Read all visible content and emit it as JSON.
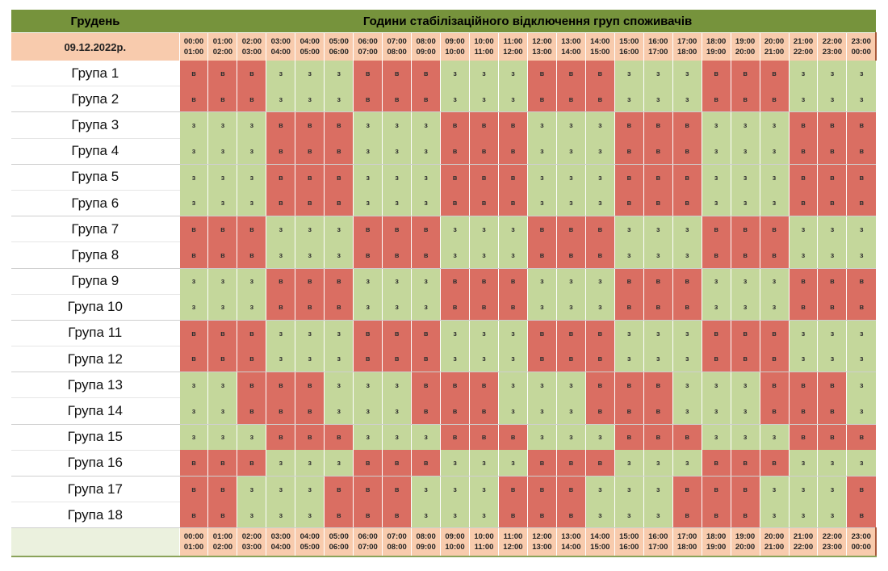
{
  "title": {
    "month": "Грудень",
    "heading": "Години стабілізаційного відключення груп споживачів"
  },
  "date": "09.12.2022р.",
  "hours": [
    {
      "start": "00:00",
      "end": "01:00"
    },
    {
      "start": "01:00",
      "end": "02:00"
    },
    {
      "start": "02:00",
      "end": "03:00"
    },
    {
      "start": "03:00",
      "end": "04:00"
    },
    {
      "start": "04:00",
      "end": "05:00"
    },
    {
      "start": "05:00",
      "end": "06:00"
    },
    {
      "start": "06:00",
      "end": "07:00"
    },
    {
      "start": "07:00",
      "end": "08:00"
    },
    {
      "start": "08:00",
      "end": "09:00"
    },
    {
      "start": "09:00",
      "end": "10:00"
    },
    {
      "start": "10:00",
      "end": "11:00"
    },
    {
      "start": "11:00",
      "end": "12:00"
    },
    {
      "start": "12:00",
      "end": "13:00"
    },
    {
      "start": "13:00",
      "end": "14:00"
    },
    {
      "start": "14:00",
      "end": "15:00"
    },
    {
      "start": "15:00",
      "end": "16:00"
    },
    {
      "start": "16:00",
      "end": "17:00"
    },
    {
      "start": "17:00",
      "end": "18:00"
    },
    {
      "start": "18:00",
      "end": "19:00"
    },
    {
      "start": "19:00",
      "end": "20:00"
    },
    {
      "start": "20:00",
      "end": "21:00"
    },
    {
      "start": "21:00",
      "end": "22:00"
    },
    {
      "start": "22:00",
      "end": "23:00"
    },
    {
      "start": "23:00",
      "end": "00:00"
    }
  ],
  "legend": {
    "on_symbol": "з",
    "off_symbol": "в",
    "on_color": "#c4d79b",
    "off_color": "#da6e62"
  },
  "groups": [
    {
      "name": "Група 1",
      "schedule": "вввзззвввзззвввзззвввззз"
    },
    {
      "name": "Група 2",
      "schedule": "вввзззвввзззвввзззвввззз"
    },
    {
      "name": "Група 3",
      "schedule": "зззвввзззвввзззвввзззввв"
    },
    {
      "name": "Група 4",
      "schedule": "зззвввзззвввзззвввзззввв"
    },
    {
      "name": "Група 5",
      "schedule": "зззвввзззвввзззвввзззввв"
    },
    {
      "name": "Група 6",
      "schedule": "зззвввзззвввзззвввзззввв"
    },
    {
      "name": "Група 7",
      "schedule": "вввзззвввзззвввзззвввззз"
    },
    {
      "name": "Група 8",
      "schedule": "вввзззвввзззвввзззвввззз"
    },
    {
      "name": "Група 9",
      "schedule": "зззвввзззвввзззвввзззввв"
    },
    {
      "name": "Група 10",
      "schedule": "зззвввзззвввзззвввзззввв"
    },
    {
      "name": "Група 11",
      "schedule": "вввзззвввзззвввзззвввззз"
    },
    {
      "name": "Група 12",
      "schedule": "вввзззвввзззвввзззвввззз"
    },
    {
      "name": "Група 13",
      "schedule": "ззвввзззвввзззвввзззвввз"
    },
    {
      "name": "Група 14",
      "schedule": "ззвввзззвввзззвввзззвввз"
    },
    {
      "name": "Група 15",
      "schedule": "зззвввзззвввзззвввзззввв"
    },
    {
      "name": "Група 16",
      "schedule": "вввзззвввзззвввзззвввззз"
    },
    {
      "name": "Група 17",
      "schedule": "ввзззвввзззвввзззвввзззв"
    },
    {
      "name": "Група 18",
      "schedule": "ввзззвввзззвввзззвввзззв"
    }
  ]
}
